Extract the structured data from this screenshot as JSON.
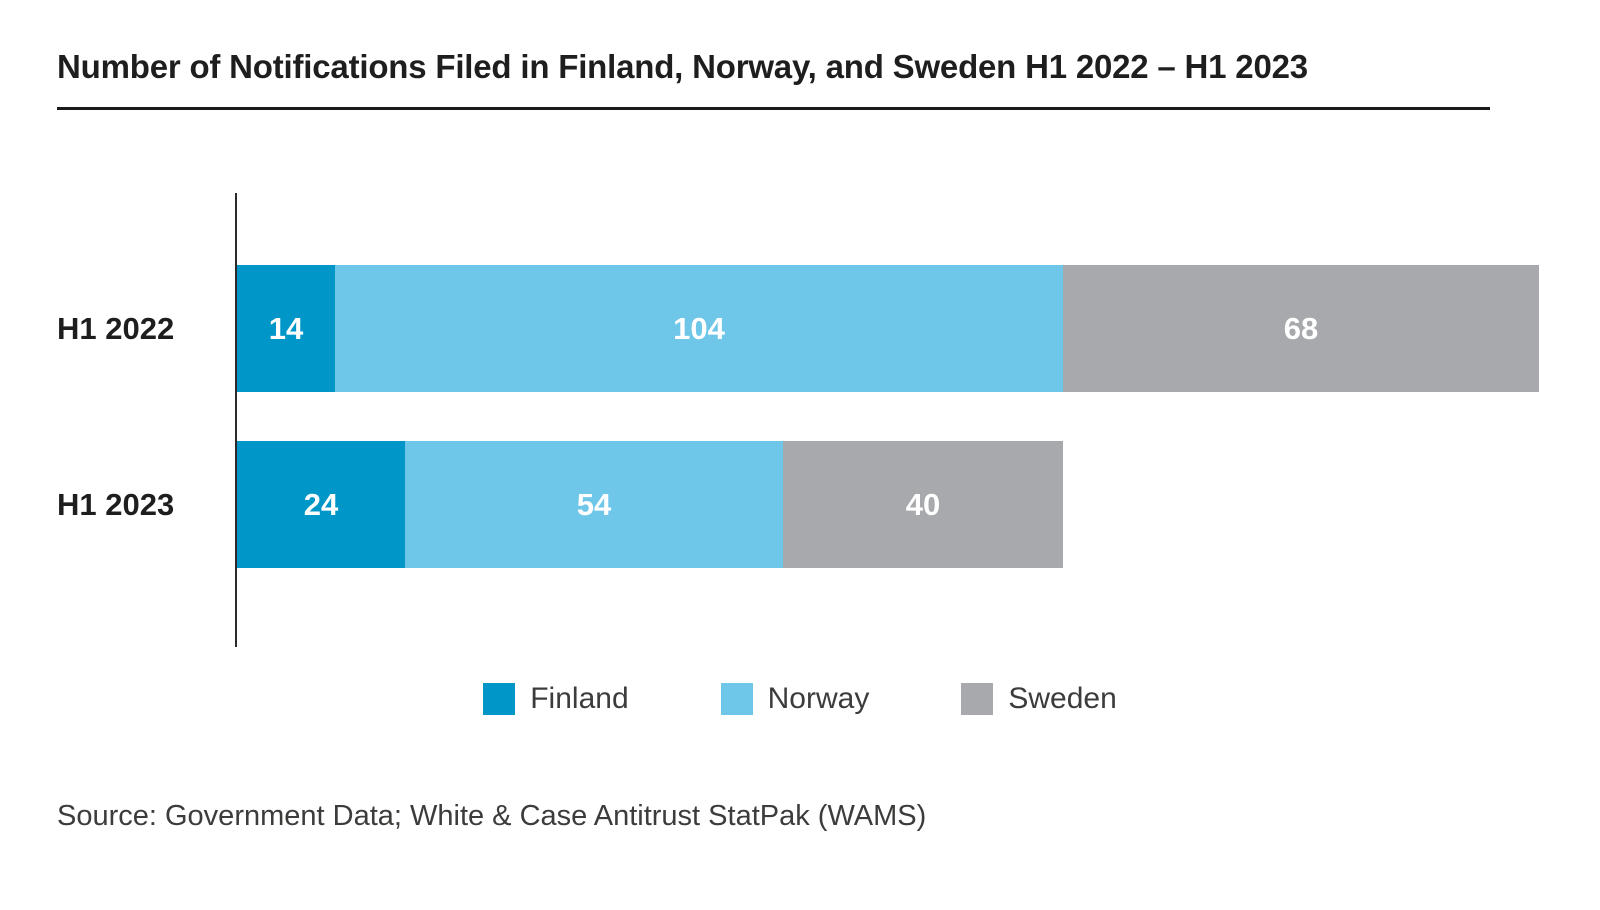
{
  "title": "Number of Notifications Filed in Finland, Norway, and Sweden H1 2022 – H1 2023",
  "source": "Source: Government Data; White & Case Antitrust StatPak (WAMS)",
  "colors": {
    "finland": "#0096C8",
    "norway": "#6EC6E8",
    "sweden": "#A7A9AC",
    "axis": "#2A2A2A",
    "title_text": "#1E1E1E",
    "value_text": "#FFFFFF",
    "secondary_text": "#3C3C3B"
  },
  "chart_data": {
    "type": "bar",
    "orientation": "horizontal",
    "stacked": true,
    "title": "Number of Notifications Filed in Finland, Norway, and Sweden H1 2022 – H1 2023",
    "categories": [
      "H1 2022",
      "H1 2023"
    ],
    "series": [
      {
        "name": "Finland",
        "color_key": "finland",
        "values": [
          14,
          24
        ]
      },
      {
        "name": "Norway",
        "color_key": "norway",
        "values": [
          104,
          54
        ]
      },
      {
        "name": "Sweden",
        "color_key": "sweden",
        "values": [
          68,
          40
        ]
      }
    ],
    "totals": [
      186,
      118
    ],
    "x_max": 186,
    "value_labels": true,
    "grid": false,
    "legend_position": "bottom"
  }
}
